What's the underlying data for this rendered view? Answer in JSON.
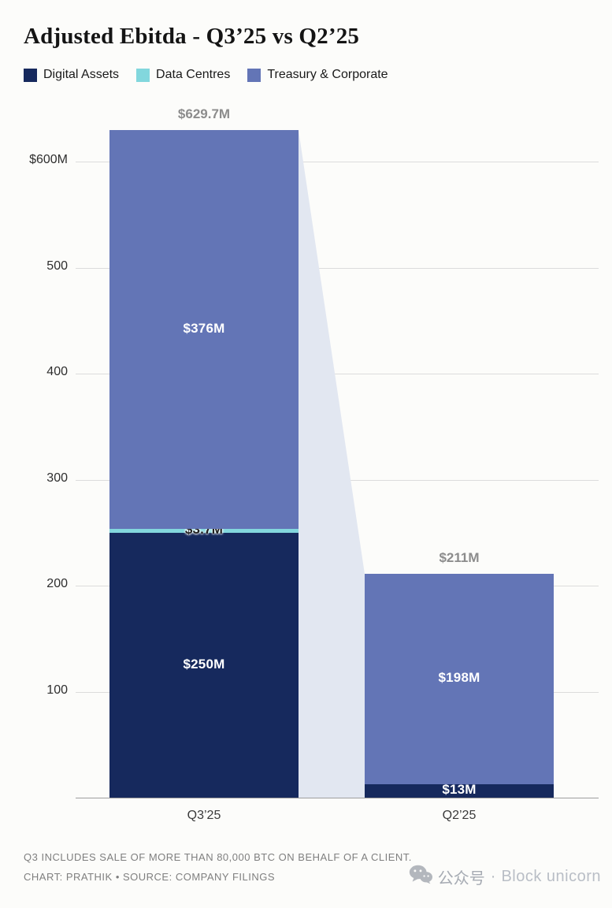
{
  "chart_data": {
    "type": "bar",
    "stacked": true,
    "title": "Adjusted Ebitda - Q3’25 vs Q2’25",
    "categories": [
      "Q3’25",
      "Q2’25"
    ],
    "series": [
      {
        "name": "Digital Assets",
        "color": "#16295d",
        "values": [
          250,
          13
        ],
        "labels": [
          "$250M",
          "$13M"
        ],
        "label_color": "#ffffff",
        "label_outline": false
      },
      {
        "name": "Data Centres",
        "color": "#82d7dd",
        "values": [
          3.7,
          0
        ],
        "labels": [
          "$3.7M",
          ""
        ],
        "label_color": "#222222",
        "label_outline": true
      },
      {
        "name": "Treasury & Corporate",
        "color": "#6375b6",
        "values": [
          376,
          198
        ],
        "labels": [
          "$376M",
          "$198M"
        ],
        "label_color": "#ffffff",
        "label_outline": false
      }
    ],
    "totals": {
      "labels": [
        "$629.7M",
        "$211M"
      ],
      "values": [
        629.7,
        211
      ]
    },
    "y_ticks": [
      {
        "value": 600,
        "label": "$600M"
      },
      {
        "value": 500,
        "label": "500"
      },
      {
        "value": 400,
        "label": "400"
      },
      {
        "value": 300,
        "label": "300"
      },
      {
        "value": 200,
        "label": "200"
      },
      {
        "value": 100,
        "label": "100"
      }
    ],
    "ylim": [
      0,
      650
    ],
    "grid": true,
    "legend_position": "top",
    "flow_color": "#e2e7f1"
  },
  "footnotes": {
    "note": "Q3 INCLUDES SALE OF MORE THAN 80,000 BTC ON BEHALF OF A CLIENT.",
    "credit": "CHART: PRATHIK • SOURCE: COMPANY FILINGS"
  },
  "watermark": {
    "platform": "公众号",
    "separator": "·",
    "name": "Block unicorn"
  }
}
